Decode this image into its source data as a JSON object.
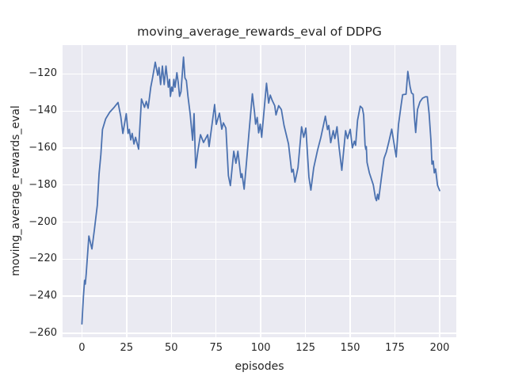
{
  "chart_data": {
    "type": "line",
    "title": "moving_average_rewards_eval of DDPG",
    "xlabel": "episodes",
    "ylabel": "moving_average_rewards_eval",
    "xticks": [
      0,
      25,
      50,
      75,
      100,
      125,
      150,
      175,
      200
    ],
    "yticks": [
      -120,
      -140,
      -160,
      -180,
      -200,
      -220,
      -240,
      -260
    ],
    "xlim": [
      -10.8,
      209.3
    ],
    "ylim": [
      -262.2,
      -104.4
    ],
    "grid": true,
    "legend_position": "none",
    "colors": {
      "line": "#4c72b0",
      "plot_background": "#eaeaf2",
      "grid": "#ffffff",
      "text": "#262626",
      "figure_background": "#ffffff"
    },
    "series": [
      {
        "name": "moving_average_rewards_eval",
        "points": [
          [
            0,
            -255
          ],
          [
            0.8,
            -241
          ],
          [
            1.5,
            -231.5
          ],
          [
            1.9,
            -233.5
          ],
          [
            2.4,
            -228
          ],
          [
            3.9,
            -207.5
          ],
          [
            5.6,
            -214.5
          ],
          [
            7,
            -204
          ],
          [
            8.6,
            -191
          ],
          [
            9.6,
            -174
          ],
          [
            10.6,
            -163.5
          ],
          [
            11.5,
            -150
          ],
          [
            13.3,
            -144.2
          ],
          [
            15.5,
            -140.7
          ],
          [
            18.2,
            -137.8
          ],
          [
            20.2,
            -135.4
          ],
          [
            21.7,
            -142.8
          ],
          [
            22.9,
            -152.1
          ],
          [
            24.8,
            -141.4
          ],
          [
            25.8,
            -152.1
          ],
          [
            26.5,
            -149.9
          ],
          [
            27.3,
            -155.6
          ],
          [
            28.1,
            -152.1
          ],
          [
            29.1,
            -157.8
          ],
          [
            30,
            -154.2
          ],
          [
            31.7,
            -160.6
          ],
          [
            33.3,
            -133.5
          ],
          [
            35,
            -138
          ],
          [
            36,
            -134.8
          ],
          [
            37,
            -138.5
          ],
          [
            38.5,
            -127.1
          ],
          [
            39.5,
            -122.1
          ],
          [
            41,
            -113.6
          ],
          [
            42.4,
            -120.7
          ],
          [
            43.1,
            -116.5
          ],
          [
            44,
            -125.7
          ],
          [
            45,
            -115.7
          ],
          [
            46,
            -125.7
          ],
          [
            47,
            -115.7
          ],
          [
            48.3,
            -127.1
          ],
          [
            49,
            -122.9
          ],
          [
            49.5,
            -132.1
          ],
          [
            50.2,
            -127.1
          ],
          [
            50.8,
            -129.3
          ],
          [
            51.4,
            -122.9
          ],
          [
            52.1,
            -127.1
          ],
          [
            53.1,
            -119.3
          ],
          [
            53.9,
            -125
          ],
          [
            54.6,
            -132.1
          ],
          [
            55.4,
            -129.5
          ],
          [
            56.8,
            -110.9
          ],
          [
            57.6,
            -122.1
          ],
          [
            58.4,
            -123.5
          ],
          [
            59.3,
            -132.1
          ],
          [
            60.5,
            -141.4
          ],
          [
            61.9,
            -155.8
          ],
          [
            62.7,
            -141.4
          ],
          [
            63.6,
            -170.7
          ],
          [
            65,
            -160.5
          ],
          [
            66.3,
            -152.8
          ],
          [
            68,
            -157
          ],
          [
            70.3,
            -152.8
          ],
          [
            71.1,
            -159.2
          ],
          [
            74.2,
            -136.5
          ],
          [
            75.1,
            -147.2
          ],
          [
            76.9,
            -141.2
          ],
          [
            78.2,
            -149.8
          ],
          [
            79.1,
            -146.4
          ],
          [
            80.5,
            -149.2
          ],
          [
            81.9,
            -174.9
          ],
          [
            83,
            -180.3
          ],
          [
            84.9,
            -161.7
          ],
          [
            86.1,
            -168.2
          ],
          [
            87.2,
            -161.7
          ],
          [
            88.9,
            -175.9
          ],
          [
            89.5,
            -173.9
          ],
          [
            90.7,
            -182.2
          ],
          [
            92,
            -167.8
          ],
          [
            93.5,
            -150.6
          ],
          [
            95.3,
            -130.7
          ],
          [
            96.5,
            -140.7
          ],
          [
            97.1,
            -147.1
          ],
          [
            98,
            -143.5
          ],
          [
            98.8,
            -151.8
          ],
          [
            99.7,
            -147.1
          ],
          [
            100.5,
            -154.2
          ],
          [
            103.2,
            -125
          ],
          [
            104.4,
            -135.7
          ],
          [
            105.3,
            -131.4
          ],
          [
            106.4,
            -134.3
          ],
          [
            107.8,
            -137.1
          ],
          [
            108.5,
            -142.1
          ],
          [
            110,
            -137.1
          ],
          [
            111.5,
            -139.2
          ],
          [
            113,
            -147.8
          ],
          [
            115.5,
            -157.8
          ],
          [
            117.3,
            -173
          ],
          [
            118.1,
            -171.5
          ],
          [
            119.1,
            -178.4
          ],
          [
            120.8,
            -170.6
          ],
          [
            122.8,
            -148.5
          ],
          [
            124,
            -154.2
          ],
          [
            125.2,
            -149.2
          ],
          [
            126.9,
            -175.6
          ],
          [
            128,
            -182.7
          ],
          [
            129.6,
            -170.6
          ],
          [
            131.7,
            -161.3
          ],
          [
            133.6,
            -154.2
          ],
          [
            136.1,
            -142.8
          ],
          [
            137.3,
            -150
          ],
          [
            138,
            -147.8
          ],
          [
            139.1,
            -157.1
          ],
          [
            140.5,
            -150.6
          ],
          [
            141.4,
            -154.9
          ],
          [
            142.6,
            -148.5
          ],
          [
            143.8,
            -159.9
          ],
          [
            145.3,
            -172
          ],
          [
            147.4,
            -150.6
          ],
          [
            148.5,
            -154.9
          ],
          [
            150,
            -149.9
          ],
          [
            151.2,
            -159.9
          ],
          [
            152.3,
            -156.3
          ],
          [
            153,
            -158.5
          ],
          [
            154.1,
            -145
          ],
          [
            155.6,
            -137.4
          ],
          [
            156.8,
            -138.5
          ],
          [
            157.5,
            -142.1
          ],
          [
            158.3,
            -158.5
          ],
          [
            158.7,
            -160.7
          ],
          [
            159,
            -159.2
          ],
          [
            159.4,
            -167.7
          ],
          [
            160.7,
            -173.4
          ],
          [
            162.9,
            -179.9
          ],
          [
            164.1,
            -187
          ],
          [
            164.7,
            -188.4
          ],
          [
            165.3,
            -184.9
          ],
          [
            165.9,
            -187.7
          ],
          [
            167.4,
            -176.3
          ],
          [
            168.9,
            -165.6
          ],
          [
            170.2,
            -162.1
          ],
          [
            171.5,
            -157
          ],
          [
            173.2,
            -149.8
          ],
          [
            175.7,
            -164.8
          ],
          [
            177,
            -147.2
          ],
          [
            178.5,
            -136.5
          ],
          [
            179.3,
            -131.2
          ],
          [
            181.2,
            -130.9
          ],
          [
            182.2,
            -118.6
          ],
          [
            183.5,
            -127.1
          ],
          [
            184.3,
            -130.3
          ],
          [
            185.2,
            -130.9
          ],
          [
            185.9,
            -143.5
          ],
          [
            186.6,
            -151.6
          ],
          [
            187.6,
            -139.2
          ],
          [
            189,
            -135
          ],
          [
            190.4,
            -133.1
          ],
          [
            192,
            -132.3
          ],
          [
            193.1,
            -132.3
          ],
          [
            194.1,
            -141.4
          ],
          [
            195.1,
            -155.6
          ],
          [
            195.7,
            -168.7
          ],
          [
            196.4,
            -167
          ],
          [
            197,
            -173.4
          ],
          [
            197.7,
            -171.3
          ],
          [
            198.8,
            -180.1
          ],
          [
            200,
            -183
          ]
        ]
      }
    ]
  }
}
